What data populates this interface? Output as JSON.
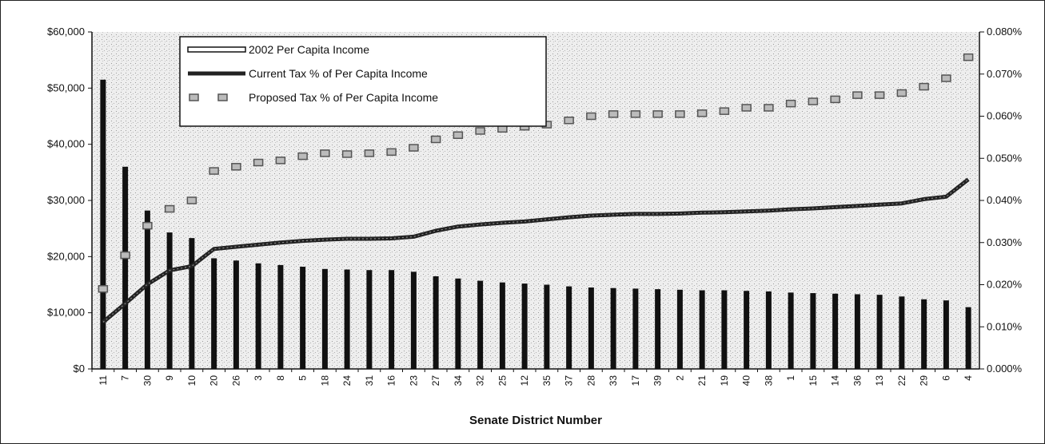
{
  "chart_data": {
    "type": "bar",
    "xlabel": "Senate District Number",
    "categories": [
      "11",
      "7",
      "30",
      "9",
      "10",
      "20",
      "26",
      "3",
      "8",
      "5",
      "18",
      "24",
      "31",
      "16",
      "23",
      "27",
      "34",
      "32",
      "25",
      "12",
      "35",
      "37",
      "28",
      "33",
      "17",
      "39",
      "2",
      "21",
      "19",
      "40",
      "38",
      "1",
      "15",
      "14",
      "36",
      "13",
      "22",
      "29",
      "6",
      "4"
    ],
    "y_left": {
      "lim": [
        0,
        60000
      ],
      "ticks": [
        "$0",
        "$10,000",
        "$20,000",
        "$30,000",
        "$40,000",
        "$50,000",
        "$60,000"
      ]
    },
    "y_right": {
      "lim": [
        0,
        0.08
      ],
      "ticks": [
        "0.000%",
        "0.010%",
        "0.020%",
        "0.030%",
        "0.040%",
        "0.050%",
        "0.060%",
        "0.070%",
        "0.080%"
      ]
    },
    "grid": false,
    "legend_position": "top-left",
    "series": [
      {
        "name": "2002 Per Capita Income",
        "kind": "bar",
        "axis": "left",
        "color": "#111111",
        "values": [
          51500,
          36000,
          28200,
          24300,
          23300,
          19700,
          19300,
          18800,
          18500,
          18200,
          17800,
          17700,
          17600,
          17600,
          17300,
          16500,
          16100,
          15700,
          15400,
          15200,
          15000,
          14700,
          14500,
          14400,
          14300,
          14200,
          14100,
          14000,
          14000,
          13900,
          13800,
          13600,
          13500,
          13400,
          13300,
          13200,
          12900,
          12400,
          12200,
          11000
        ]
      },
      {
        "name": "Current Tax % of Per Capita Income",
        "kind": "line",
        "axis": "right",
        "color": "#222222",
        "values": [
          0.0111,
          0.0155,
          0.0201,
          0.0234,
          0.0244,
          0.0285,
          0.029,
          0.0295,
          0.03,
          0.0304,
          0.0307,
          0.0309,
          0.0309,
          0.031,
          0.0314,
          0.0328,
          0.0338,
          0.0343,
          0.0347,
          0.035,
          0.0355,
          0.036,
          0.0364,
          0.0366,
          0.0368,
          0.0368,
          0.0369,
          0.0371,
          0.0372,
          0.0374,
          0.0376,
          0.0379,
          0.0381,
          0.0384,
          0.0387,
          0.039,
          0.0393,
          0.0403,
          0.0409,
          0.045
        ]
      },
      {
        "name": "Proposed Tax % of Per Capita Income",
        "kind": "marker",
        "axis": "right",
        "color": "#555555",
        "values": [
          0.019,
          0.027,
          0.034,
          0.038,
          0.04,
          0.047,
          0.048,
          0.049,
          0.0495,
          0.0505,
          0.0512,
          0.051,
          0.0512,
          0.0515,
          0.0525,
          0.0545,
          0.0555,
          0.0565,
          0.057,
          0.0575,
          0.058,
          0.059,
          0.06,
          0.0605,
          0.0605,
          0.0605,
          0.0605,
          0.0607,
          0.0612,
          0.062,
          0.062,
          0.063,
          0.0635,
          0.064,
          0.065,
          0.065,
          0.0655,
          0.067,
          0.069,
          0.074
        ]
      }
    ]
  }
}
